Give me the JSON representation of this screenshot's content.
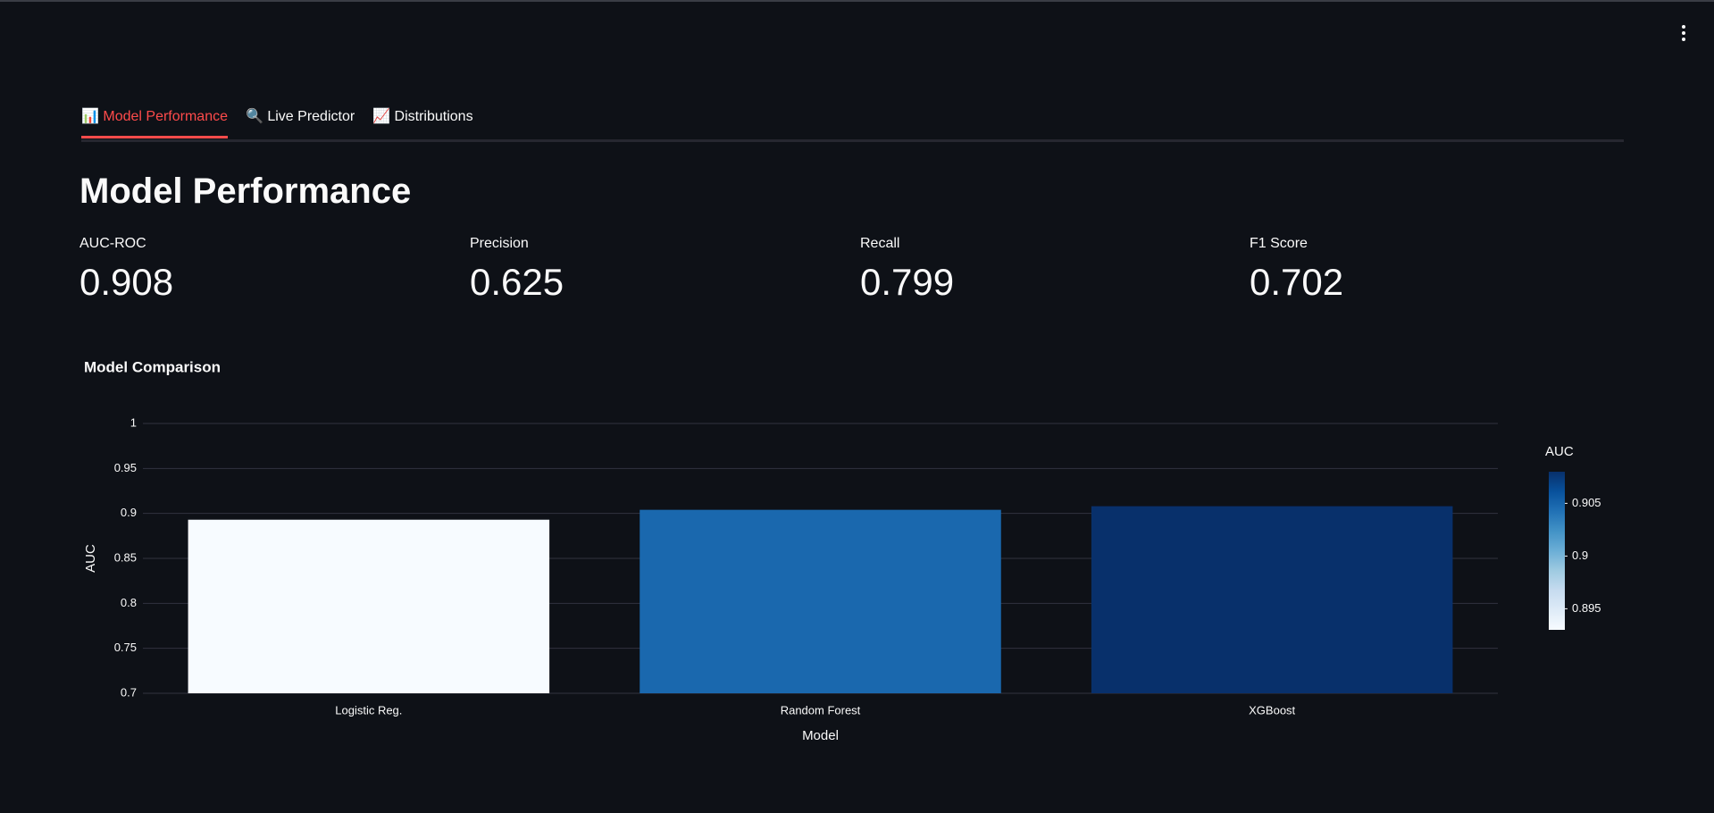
{
  "tabs": {
    "items": [
      "📊 Model Performance",
      "🔍 Live Predictor",
      "📈 Distributions"
    ],
    "active": 0
  },
  "header": {
    "title": "Model Performance"
  },
  "metrics": [
    {
      "label": "AUC-ROC",
      "value": 0.908
    },
    {
      "label": "Precision",
      "value": 0.625
    },
    {
      "label": "Recall",
      "value": 0.799
    },
    {
      "label": "F1 Score",
      "value": 0.702
    }
  ],
  "chart_data": {
    "type": "bar",
    "title": "Model Comparison",
    "categories": [
      "Logistic Reg.",
      "Random Forest",
      "XGBoost"
    ],
    "values": [
      0.893,
      0.904,
      0.908
    ],
    "colors": [
      "#f7fbff",
      "#1a68ae",
      "#08306b"
    ],
    "x_label": "Model",
    "y_label": "AUC",
    "ylim": [
      0.7,
      1
    ],
    "yticks": [
      0.7,
      0.75,
      0.8,
      0.85,
      0.9,
      0.95,
      1
    ],
    "grid": true,
    "colorbar": {
      "title": "AUC",
      "clim": [
        0.893,
        0.908
      ],
      "ticks": [
        0.895,
        0.9,
        0.905
      ],
      "colorscale": [
        "#f7fbff",
        "#deebf7",
        "#c6dbef",
        "#9ecae1",
        "#6baed6",
        "#4292c6",
        "#2171b5",
        "#08519c",
        "#08306b"
      ]
    }
  }
}
